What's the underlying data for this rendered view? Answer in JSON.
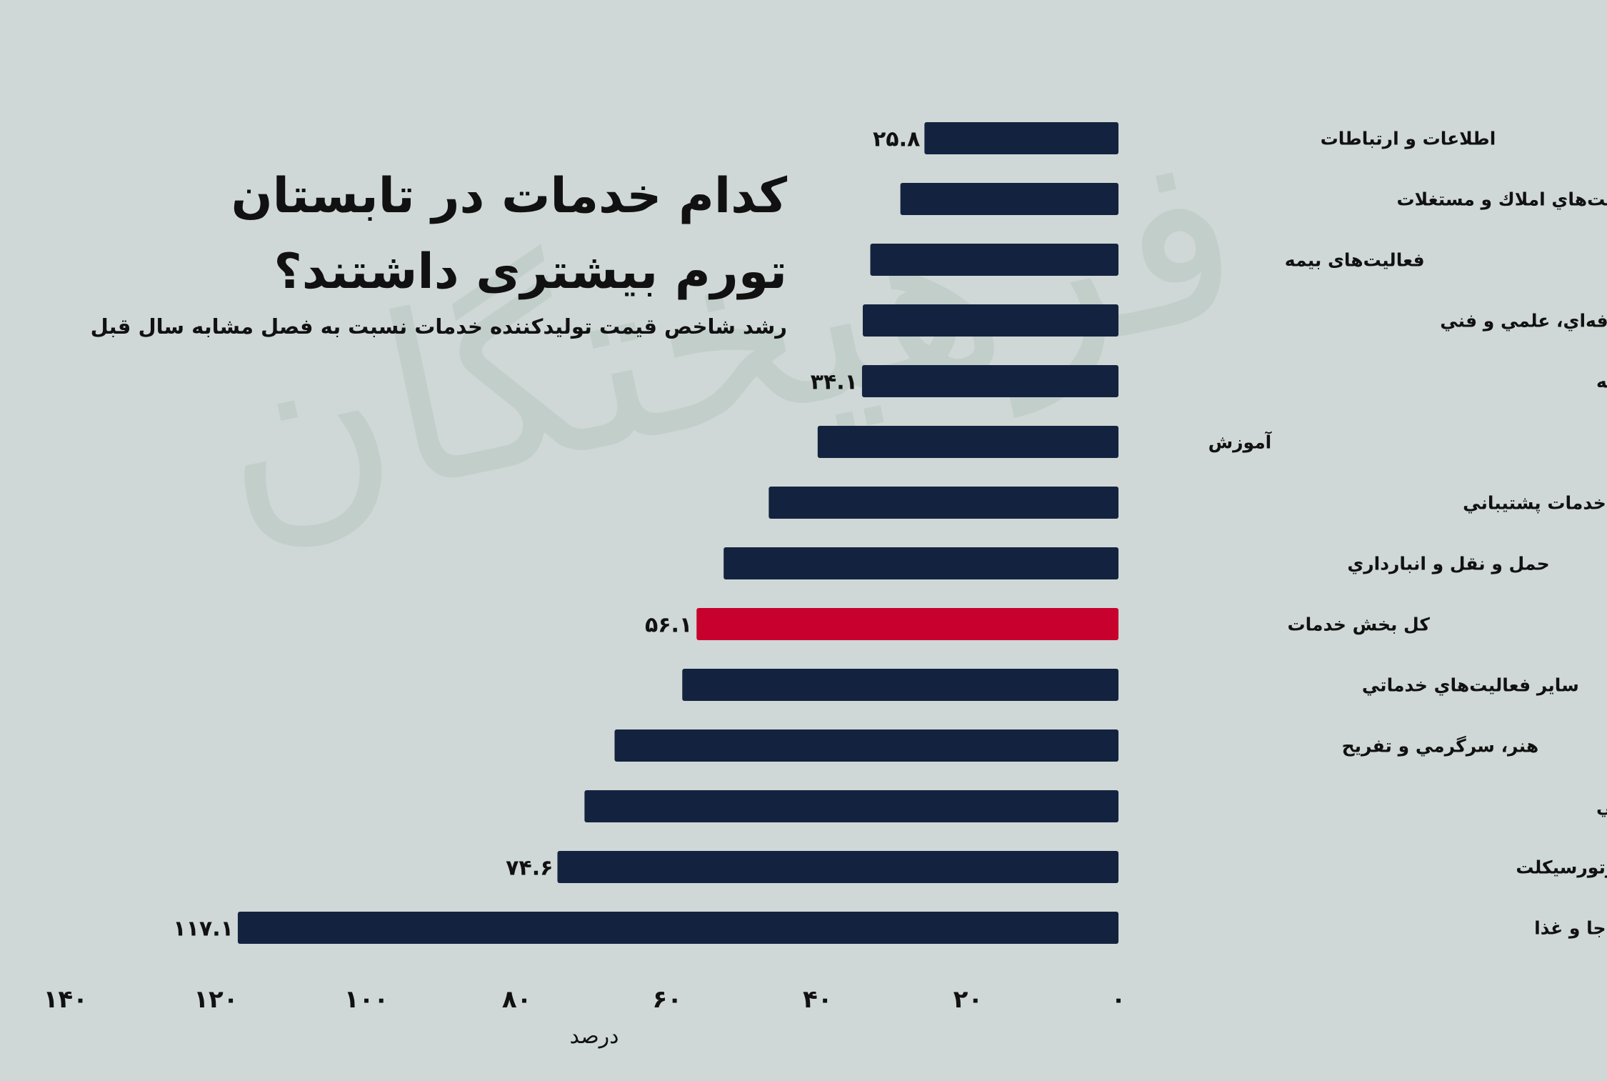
{
  "title_lines": [
    "کدام خدمات در تابستان",
    "تورم بیشتری داشتند؟"
  ],
  "subtitle": "رشد شاخص قیمت تولیدکننده خدمات نسبت به فصل مشابه سال قبل",
  "watermark": "فرهیختگان",
  "colors": {
    "background": "#cfd8d6",
    "bar": "#13233f",
    "highlight": "#c8002d",
    "text": "#111111",
    "watermark": "#b9c7c2"
  },
  "chart_data": {
    "type": "bar",
    "orientation": "horizontal",
    "categories": [
      "اطلاعات و ارتباطات",
      "فعاليت‌هاي املاك و مستغلات",
      "فعالیت‌های بیمه",
      "فعاليت‌هاي حرفه‌اي، علمي و فني",
      "آب‌رساني، مديريت پسماند، فاضلاب و فعاليت‌های تصفيه",
      "آموزش",
      "فعاليت‌هاي اداري و خدمات پشتيباني",
      "حمل و نقل و انبارداري",
      "كل بخش خدمات",
      "ساير فعاليت‌هاي خدماتي",
      "هنر، سرگرمي و تفريح",
      "فعاليت‌هاي مربوط به سلامت انسان و مددكاري اجتماعي",
      "تعمیر وسایل نقلیه موتوری و موتورسیکلت",
      "فعالیت‌های خدماتی مربوط به تامین جا و غذا"
    ],
    "values": [
      25.8,
      29,
      33,
      34,
      34.1,
      40,
      46.5,
      52.5,
      56.1,
      58,
      67,
      71,
      74.6,
      117.1
    ],
    "data_labels": [
      "۲۵.۸",
      "",
      "",
      "",
      "۳۴.۱",
      "",
      "",
      "",
      "۵۶.۱",
      "",
      "",
      "",
      "۷۴.۶",
      "۱۱۷.۱"
    ],
    "highlight_index": 8,
    "xlim": [
      0,
      140
    ],
    "x_direction": "right-to-left",
    "xticks": [
      0,
      20,
      40,
      60,
      80,
      100,
      120,
      140
    ],
    "xtick_labels": [
      "۰",
      "۲۰",
      "۴۰",
      "۶۰",
      "۸۰",
      "۱۰۰",
      "۱۲۰",
      "۱۴۰"
    ],
    "xlabel": "درصد",
    "ylabel": "",
    "grid": false,
    "legend": "none"
  }
}
